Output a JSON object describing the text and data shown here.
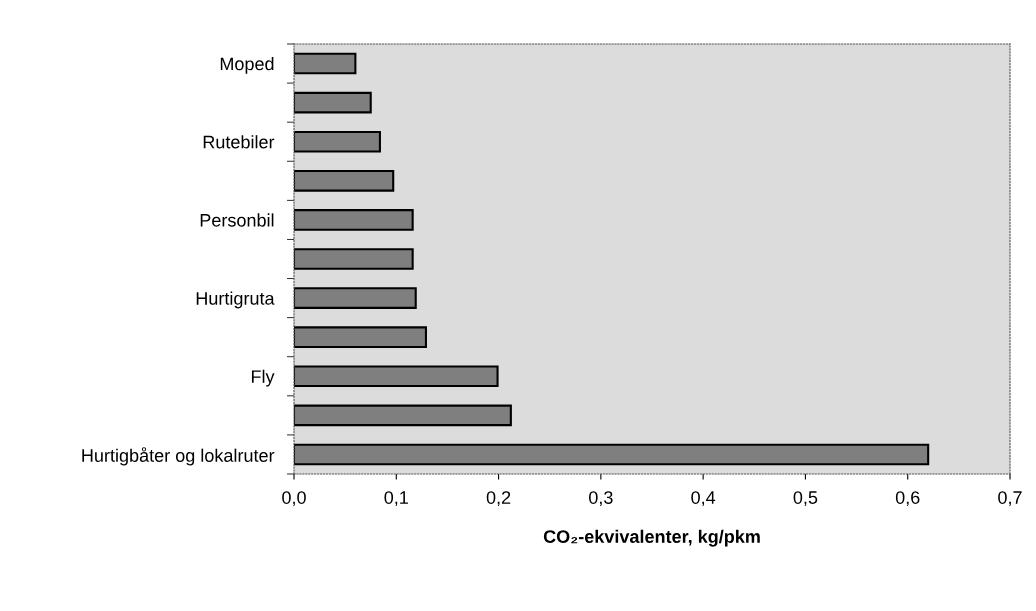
{
  "chart_data": {
    "type": "bar",
    "orientation": "horizontal",
    "xlabel": "CO₂-ekvivalenter, kg/pkm",
    "categories": [
      "Moped",
      null,
      "Rutebiler",
      null,
      "Personbil",
      null,
      "Hurtigruta",
      null,
      "Fly",
      null,
      "Hurtigbåter og lokalruter"
    ],
    "values": [
      0.06,
      0.075,
      0.084,
      0.097,
      0.116,
      0.116,
      0.119,
      0.129,
      0.199,
      0.212,
      0.62
    ],
    "color": "#7f7f7f",
    "xlim": [
      0,
      0.7
    ],
    "xticks": [
      {
        "value": 0,
        "label": "0,0"
      },
      {
        "value": 0.1,
        "label": "0,1"
      },
      {
        "value": 0.2,
        "label": "0,2"
      },
      {
        "value": 0.3,
        "label": "0,3"
      },
      {
        "value": 0.4,
        "label": "0,4"
      },
      {
        "value": 0.5,
        "label": "0,5"
      },
      {
        "value": 0.6,
        "label": "0,6"
      },
      {
        "value": 0.7,
        "label": "0,7"
      }
    ],
    "grid": false
  }
}
